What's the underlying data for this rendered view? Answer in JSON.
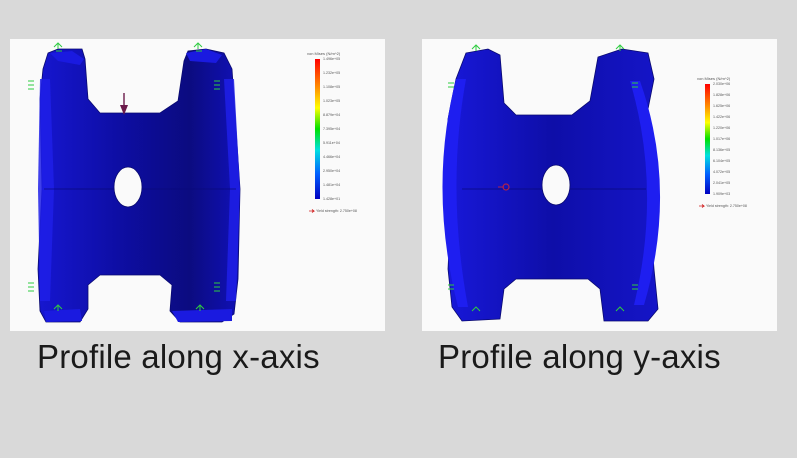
{
  "panels": [
    {
      "caption": "Profile along x-axis",
      "legend": {
        "title": "von Mises (N/m^2)",
        "ticks": [
          "1.496e+05",
          "1.232e+05",
          "1.108e+05",
          "1.023e+05",
          "8.879e+04",
          "7.395e+04",
          "5.911e+04",
          "4.466e+04",
          "2.950e+04",
          "1.481e+04",
          "1.428e+01"
        ],
        "yield_label": "Yield strength: 2.750e+08"
      }
    },
    {
      "caption": "Profile along y-axis",
      "legend": {
        "title": "von Mises (N/m^2)",
        "ticks": [
          "2.030e+06",
          "1.828e+06",
          "1.625e+06",
          "1.422e+06",
          "1.220e+06",
          "1.017e+06",
          "8.136e+05",
          "6.104e+05",
          "4.072e+05",
          "2.041e+05",
          "1.909e+03"
        ],
        "yield_label": "Yield strength: 2.750e+08"
      }
    }
  ],
  "colors": {
    "background": "#d9d9d9",
    "part_blue": "#1212c8",
    "part_dark": "#0a0a8a",
    "fixture_green": "#2ecc40",
    "load_arrow": "#6b1a4a"
  }
}
